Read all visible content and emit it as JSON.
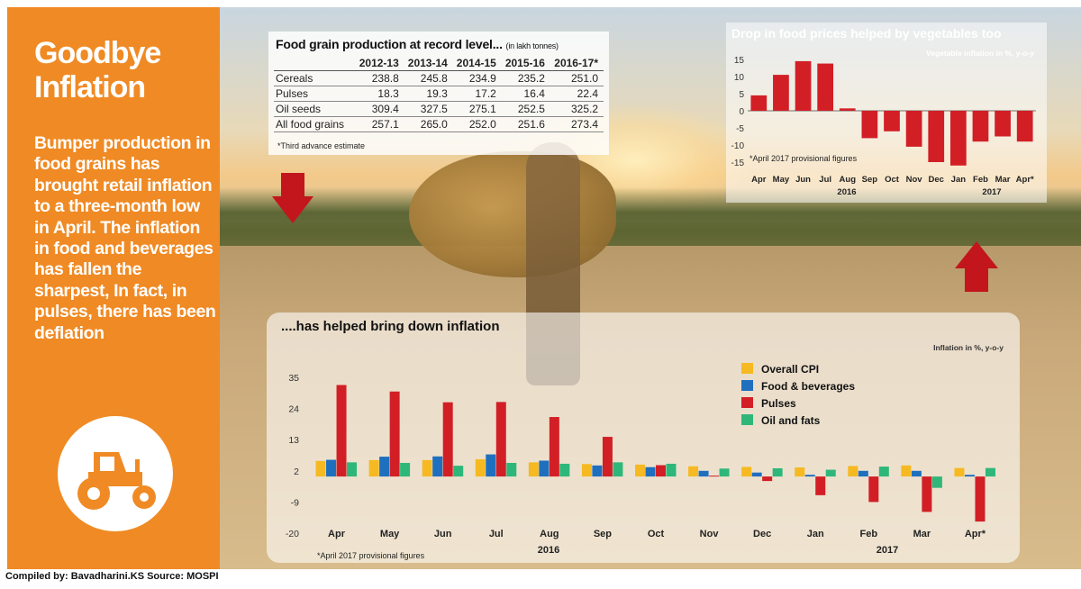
{
  "headline": "Goodbye Inflation",
  "body_text": "Bumper production in food grains has brought retail inflation to a three-month low in April. The inflation in food and beverages has fallen the sharpest, In fact, in pulses, there has been deflation",
  "credit": "Compiled by: Bavadharini.KS  Source: MOSPI",
  "icons": {
    "tractor": "tractor-icon",
    "arrow_down": "arrow-down-icon",
    "arrow_up": "arrow-up-icon"
  },
  "colors": {
    "orange": "#f08a24",
    "red": "#d21f26",
    "blue": "#1f6fbf",
    "yellow": "#f6b922",
    "green": "#2fb77a"
  },
  "food_table": {
    "title": "Food grain production at record level...",
    "unit": "(in lakh tonnes)",
    "headers": [
      "",
      "2012-13",
      "2013-14",
      "2014-15",
      "2015-16",
      "2016-17*"
    ],
    "rows": [
      [
        "Cereals",
        "238.8",
        "245.8",
        "234.9",
        "235.2",
        "251.0"
      ],
      [
        "Pulses",
        "18.3",
        "19.3",
        "17.2",
        "16.4",
        "22.4"
      ],
      [
        "Oil seeds",
        "309.4",
        "327.5",
        "275.1",
        "252.5",
        "325.2"
      ],
      [
        "All food grains",
        "257.1",
        "265.0",
        "252.0",
        "251.6",
        "273.4"
      ]
    ],
    "note": "*Third advance estimate"
  },
  "chart_data": [
    {
      "type": "bar",
      "title": "Drop in food prices helped by vegetables too",
      "subtitle": "Vegetable inflation in %, y-o-y",
      "note": "*April 2017 provisional figures",
      "categories": [
        "Apr",
        "May",
        "Jun",
        "Jul",
        "Aug",
        "Sep",
        "Oct",
        "Nov",
        "Dec",
        "Jan",
        "Feb",
        "Mar",
        "Apr*"
      ],
      "year_labels": [
        "2016",
        "2017"
      ],
      "values": [
        4.5,
        10.5,
        14.5,
        13.8,
        0.7,
        -8.0,
        -6.0,
        -10.5,
        -15.0,
        -16.0,
        -9.0,
        -7.5,
        -9.0
      ],
      "ylim": [
        -15,
        15
      ],
      "yticks": [
        "15",
        "10",
        "5",
        "0",
        "-5",
        "-10",
        "-15"
      ],
      "color": "#d21f26"
    },
    {
      "type": "bar",
      "title": "....has helped bring down inflation",
      "subtitle": "Inflation in %, y-o-y",
      "note": "*April 2017 provisional figures",
      "categories": [
        "Apr",
        "May",
        "Jun",
        "Jul",
        "Aug",
        "Sep",
        "Oct",
        "Nov",
        "Dec",
        "Jan",
        "Feb",
        "Mar",
        "Apr*"
      ],
      "year_labels": [
        "2016",
        "2017"
      ],
      "ylim": [
        -20,
        35
      ],
      "yticks": [
        "35",
        "24",
        "13",
        "2",
        "-9",
        "-20"
      ],
      "legend": "top-right",
      "series": [
        {
          "name": "Overall CPI",
          "color": "#f6b922",
          "values": [
            5.5,
            5.8,
            5.8,
            6.1,
            5.0,
            4.4,
            4.2,
            3.6,
            3.4,
            3.2,
            3.7,
            3.9,
            3.0
          ]
        },
        {
          "name": "Food & beverages",
          "color": "#1f6fbf",
          "values": [
            5.9,
            7.0,
            7.1,
            7.8,
            5.6,
            3.9,
            3.3,
            2.0,
            1.4,
            0.6,
            2.0,
            2.0,
            0.6
          ]
        },
        {
          "name": "Pulses",
          "color": "#d21f26",
          "values": [
            32.3,
            30.0,
            26.2,
            26.3,
            21.0,
            14.0,
            4.0,
            0.3,
            -1.6,
            -6.6,
            -9.0,
            -12.5,
            -15.9
          ]
        },
        {
          "name": "Oil and fats",
          "color": "#2fb77a",
          "values": [
            5.0,
            4.8,
            3.8,
            4.8,
            4.5,
            5.0,
            4.5,
            2.8,
            2.9,
            2.4,
            3.5,
            -4.0,
            3.0
          ]
        }
      ]
    }
  ]
}
